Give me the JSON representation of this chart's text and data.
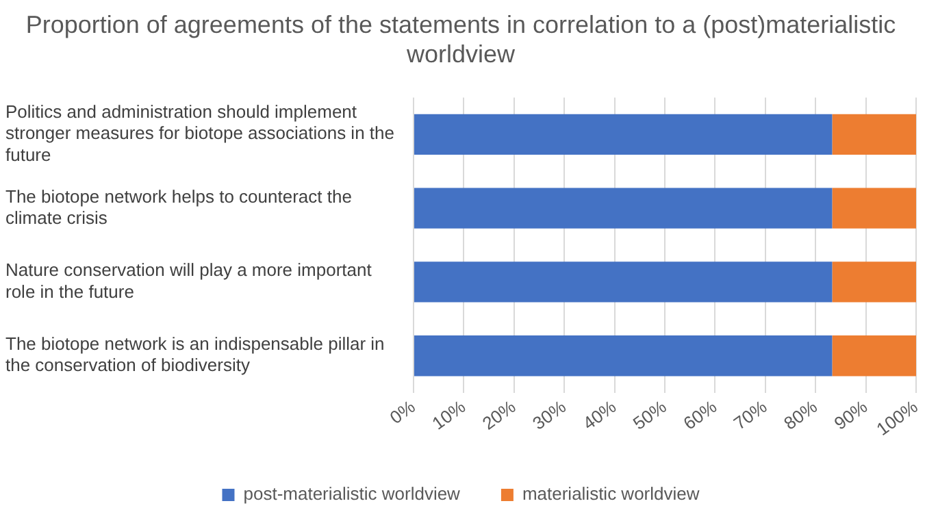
{
  "chart_data": {
    "type": "bar",
    "orientation": "horizontal",
    "stacked": true,
    "title": "Proportion of agreements of the statements in correlation to a (post)materialistic worldview",
    "categories": [
      "Politics and administration should implement stronger measures for biotope associations in the future",
      "The biotope network helps to counteract the climate crisis",
      "Nature conservation will play a more important role in the future",
      "The biotope network is an indispensable pillar in the conservation of biodiversity"
    ],
    "series": [
      {
        "name": "post-materialistic worldview",
        "color": "#4472c4",
        "values": [
          83.3,
          83.3,
          83.3,
          83.3
        ]
      },
      {
        "name": "materialistic worldview",
        "color": "#ed7d31",
        "values": [
          16.7,
          16.7,
          16.7,
          16.7
        ]
      }
    ],
    "xlim": [
      0,
      100
    ],
    "xticks": [
      {
        "value": 0,
        "label": "0%"
      },
      {
        "value": 10,
        "label": "10%"
      },
      {
        "value": 20,
        "label": "20%"
      },
      {
        "value": 30,
        "label": "30%"
      },
      {
        "value": 40,
        "label": "40%"
      },
      {
        "value": 50,
        "label": "50%"
      },
      {
        "value": 60,
        "label": "60%"
      },
      {
        "value": 70,
        "label": "70%"
      },
      {
        "value": 80,
        "label": "80%"
      },
      {
        "value": 90,
        "label": "90%"
      },
      {
        "value": 100,
        "label": "100%"
      }
    ],
    "grid": "x",
    "legend": "bottom"
  }
}
